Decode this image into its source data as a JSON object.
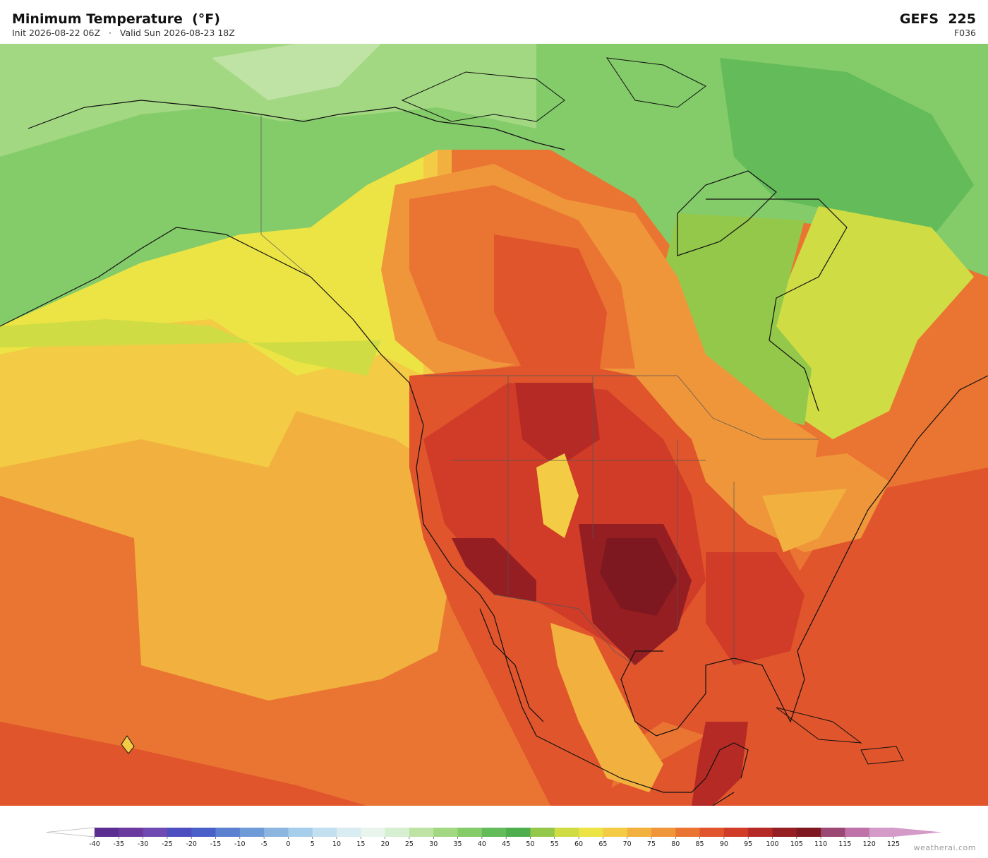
{
  "header": {
    "title": "Minimum Temperature  (°F)",
    "init": "Init 2026-08-22 06Z",
    "valid": "Valid Sun 2026-08-23 18Z",
    "model": "GEFS  225",
    "forecast_hour": "F036"
  },
  "colorbar": {
    "ticks": [
      -40,
      -35,
      -30,
      -25,
      -20,
      -15,
      -10,
      -5,
      0,
      5,
      10,
      15,
      20,
      25,
      30,
      35,
      40,
      45,
      50,
      55,
      60,
      65,
      70,
      75,
      80,
      85,
      90,
      95,
      100,
      105,
      110,
      115,
      120,
      125
    ],
    "colors": [
      "#5a2d91",
      "#6b3a9e",
      "#6f4ab0",
      "#4d4fc0",
      "#4a60c8",
      "#5b80d0",
      "#6f9ad8",
      "#8cb6e0",
      "#a6cdea",
      "#c2e0f0",
      "#d8ecf2",
      "#e8f4ec",
      "#d6efd0",
      "#bfe3a5",
      "#a3d882",
      "#84cb6a",
      "#64bb5a",
      "#4fae4e",
      "#94c84a",
      "#cfdc44",
      "#ece444",
      "#f3cb45",
      "#f2b13e",
      "#f0963a",
      "#ea7532",
      "#e0552c",
      "#d03c28",
      "#b52a25",
      "#941e22",
      "#7e1820",
      "#9b4874",
      "#bf72a8",
      "#d49ac8"
    ]
  },
  "footer": {
    "credit": "weatherai.com"
  }
}
